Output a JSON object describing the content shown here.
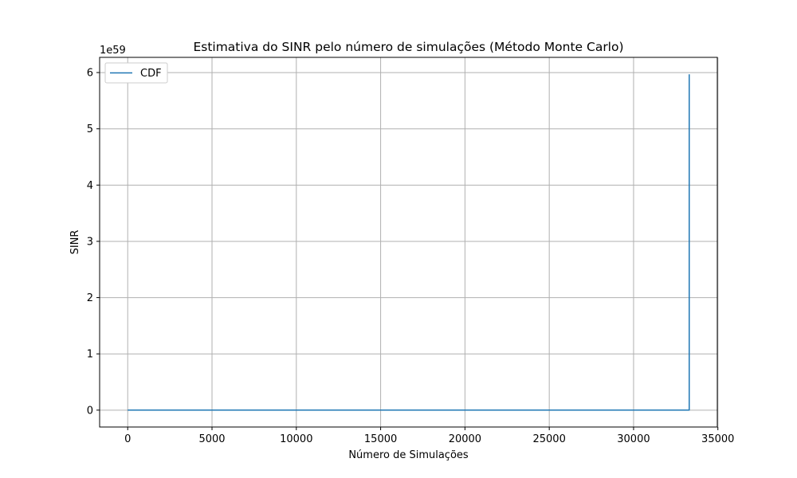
{
  "chart_data": {
    "type": "line",
    "title": "Estimativa do SINR pelo número de simulações (Método Monte Carlo)",
    "xlabel": "Número de Simulações",
    "ylabel": "SINR",
    "offset_label": "1e59",
    "xlim": [
      -1665,
      34965
    ],
    "ylim": [
      -0.3,
      6.27
    ],
    "xticks": [
      0,
      5000,
      10000,
      15000,
      20000,
      25000,
      30000,
      35000
    ],
    "yticks": [
      0,
      1,
      2,
      3,
      4,
      5,
      6
    ],
    "grid": true,
    "legend_placement": "upper-left",
    "series": [
      {
        "name": "CDF",
        "color": "#1f77b4",
        "x": [
          0,
          33299,
          33300,
          33300
        ],
        "y": [
          0,
          0,
          0,
          5.97
        ]
      }
    ]
  }
}
